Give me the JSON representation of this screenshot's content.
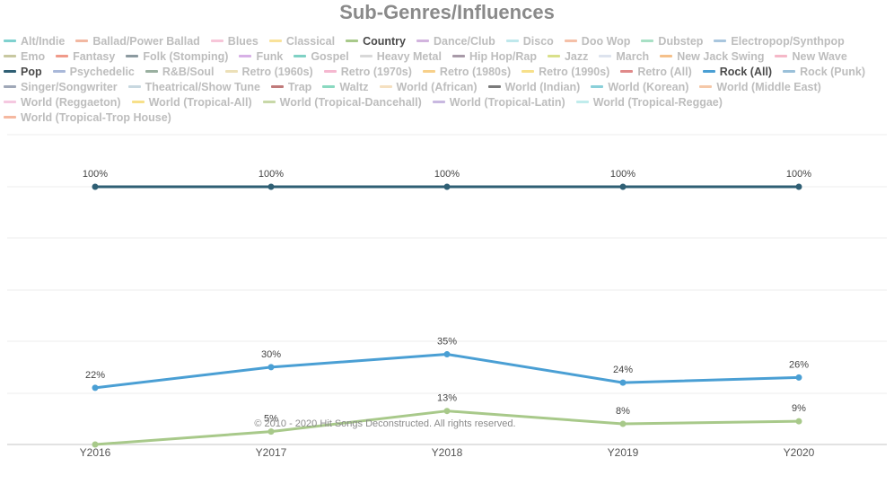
{
  "chart_data": {
    "type": "line",
    "title": "Sub-Genres/Influences",
    "categories": [
      "Y2016",
      "Y2017",
      "Y2018",
      "Y2019",
      "Y2020"
    ],
    "ylim": [
      0,
      100
    ],
    "grid": true,
    "legend_placement": "top",
    "series": [
      {
        "name": "Pop",
        "color": "#2f5f74",
        "values": [
          100,
          100,
          100,
          100,
          100
        ],
        "labels": [
          "100%",
          "100%",
          "100%",
          "100%",
          "100%"
        ]
      },
      {
        "name": "Rock (All)",
        "color": "#4a9fd4",
        "values": [
          22,
          30,
          35,
          24,
          26
        ],
        "labels": [
          "22%",
          "30%",
          "35%",
          "24%",
          "26%"
        ]
      },
      {
        "name": "Country",
        "color": "#a8c98a",
        "values": [
          0,
          5,
          13,
          8,
          9
        ],
        "labels": [
          "",
          "5%",
          "13%",
          "8%",
          "9%"
        ]
      }
    ],
    "legend": [
      {
        "label": "Alt/Indie",
        "color": "#7fd1cf",
        "active": false
      },
      {
        "label": "Ballad/Power Ballad",
        "color": "#f2b8a2",
        "active": false
      },
      {
        "label": "Blues",
        "color": "#f7c6d9",
        "active": false
      },
      {
        "label": "Classical",
        "color": "#f9e29a",
        "active": false
      },
      {
        "label": "Country",
        "color": "#a8c98a",
        "active": true
      },
      {
        "label": "Dance/Club",
        "color": "#d2b4de",
        "active": false
      },
      {
        "label": "Disco",
        "color": "#bfe8ec",
        "active": false
      },
      {
        "label": "Doo Wop",
        "color": "#f5c0a8",
        "active": false
      },
      {
        "label": "Dubstep",
        "color": "#a8e0c5",
        "active": false
      },
      {
        "label": "Electropop/Synthpop",
        "color": "#a9c6de",
        "active": false
      },
      {
        "label": "Emo",
        "color": "#c8c8a0",
        "active": false
      },
      {
        "label": "Fantasy",
        "color": "#f09a8a",
        "active": false
      },
      {
        "label": "Folk (Stomping)",
        "color": "#8c9aa0",
        "active": false
      },
      {
        "label": "Funk",
        "color": "#d7b0e6",
        "active": false
      },
      {
        "label": "Gospel",
        "color": "#7fd1c4",
        "active": false
      },
      {
        "label": "Heavy Metal",
        "color": "#d8d8d8",
        "active": false
      },
      {
        "label": "Hip Hop/Rap",
        "color": "#a89aa8",
        "active": false
      },
      {
        "label": "Jazz",
        "color": "#d9e08a",
        "active": false
      },
      {
        "label": "March",
        "color": "#dde3ee",
        "active": false
      },
      {
        "label": "New Jack Swing",
        "color": "#f5c08a",
        "active": false
      },
      {
        "label": "New Wave",
        "color": "#f5b8c8",
        "active": false
      },
      {
        "label": "Pop",
        "color": "#2f5f74",
        "active": true
      },
      {
        "label": "Psychedelic",
        "color": "#a9b8d9",
        "active": false
      },
      {
        "label": "R&B/Soul",
        "color": "#9ab0a0",
        "active": false
      },
      {
        "label": "Retro (1960s)",
        "color": "#ece0b8",
        "active": false
      },
      {
        "label": "Retro (1970s)",
        "color": "#f5b8d0",
        "active": false
      },
      {
        "label": "Retro (1980s)",
        "color": "#f7d08a",
        "active": false
      },
      {
        "label": "Retro (1990s)",
        "color": "#f7e08a",
        "active": false
      },
      {
        "label": "Retro (All)",
        "color": "#e08a8a",
        "active": false
      },
      {
        "label": "Rock (All)",
        "color": "#4a9fd4",
        "active": true
      },
      {
        "label": "Rock (Punk)",
        "color": "#9ac0d9",
        "active": false
      },
      {
        "label": "Singer/Songwriter",
        "color": "#a0a8b8",
        "active": false
      },
      {
        "label": "Theatrical/Show Tune",
        "color": "#c8d8e0",
        "active": false
      },
      {
        "label": "Trap",
        "color": "#c07a7a",
        "active": false
      },
      {
        "label": "Waltz",
        "color": "#8ad9c0",
        "active": false
      },
      {
        "label": "World (African)",
        "color": "#f5e0c0",
        "active": false
      },
      {
        "label": "World (Indian)",
        "color": "#7a7a7a",
        "active": false
      },
      {
        "label": "World (Korean)",
        "color": "#8ad0d9",
        "active": false
      },
      {
        "label": "World (Middle East)",
        "color": "#f5c8a8",
        "active": false
      },
      {
        "label": "World (Reggaeton)",
        "color": "#f5c8e0",
        "active": false
      },
      {
        "label": "World (Tropical-All)",
        "color": "#f7e08a",
        "active": false
      },
      {
        "label": "World (Tropical-Dancehall)",
        "color": "#c8d8a8",
        "active": false
      },
      {
        "label": "World (Tropical-Latin)",
        "color": "#c8b8e0",
        "active": false
      },
      {
        "label": "World (Tropical-Reggae)",
        "color": "#c0ecec",
        "active": false
      },
      {
        "label": "World (Tropical-Trop House)",
        "color": "#f5b8a0",
        "active": false
      }
    ],
    "watermark": "© 2010 - 2020 Hit Songs Deconstructed. All rights reserved."
  }
}
